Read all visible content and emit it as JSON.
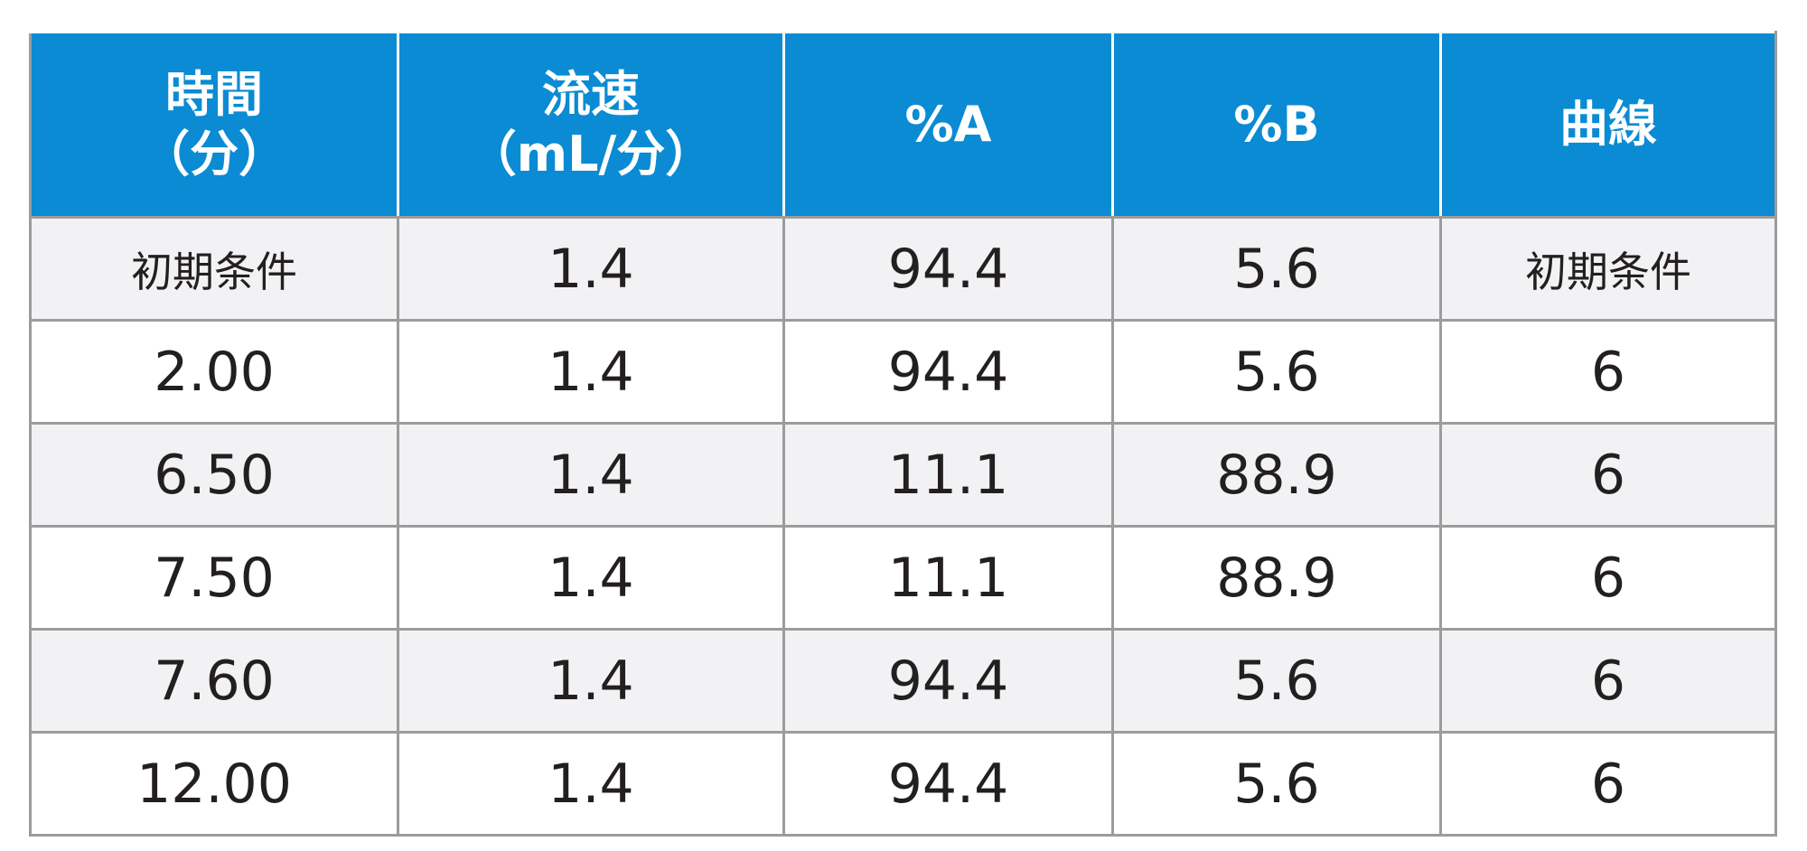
{
  "table": {
    "header": [
      [
        "時間",
        "（分）"
      ],
      [
        "流速",
        "（mL/分）"
      ],
      [
        "%A"
      ],
      [
        "%B"
      ],
      [
        "曲線"
      ]
    ],
    "rows": [
      [
        "初期条件",
        "1.4",
        "94.4",
        "5.6",
        "初期条件"
      ],
      [
        "2.00",
        "1.4",
        "94.4",
        "5.6",
        "6"
      ],
      [
        "6.50",
        "1.4",
        "11.1",
        "88.9",
        "6"
      ],
      [
        "7.50",
        "1.4",
        "11.1",
        "88.9",
        "6"
      ],
      [
        "7.60",
        "1.4",
        "94.4",
        "5.6",
        "6"
      ],
      [
        "12.00",
        "1.4",
        "94.4",
        "5.6",
        "6"
      ]
    ]
  }
}
